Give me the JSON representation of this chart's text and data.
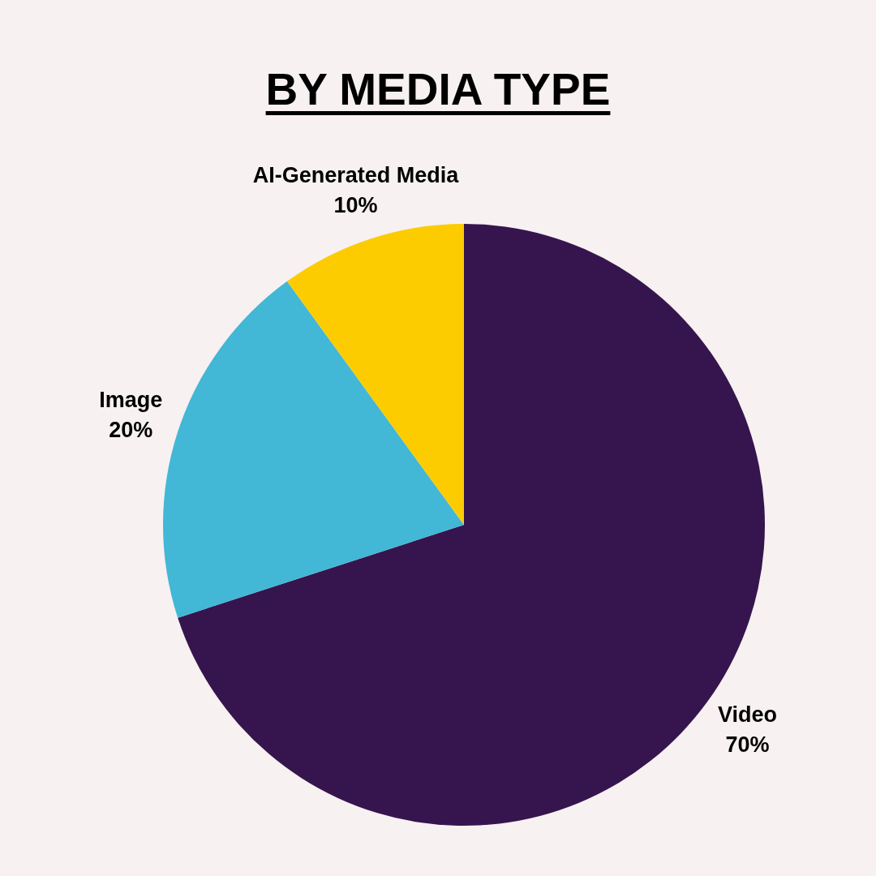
{
  "chart_data": {
    "type": "pie",
    "title": "BY MEDIA TYPE",
    "categories": [
      "Video",
      "Image",
      "AI-Generated Media"
    ],
    "values": [
      70,
      20,
      10
    ],
    "colors": [
      "#36154e",
      "#42b7d6",
      "#fccc00"
    ],
    "value_labels": [
      "70%",
      "20%",
      "10%"
    ],
    "legend": false
  }
}
